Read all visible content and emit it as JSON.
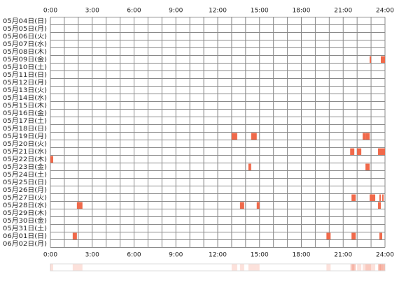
{
  "chart_data": {
    "type": "timeline",
    "xlim": [
      0,
      24
    ],
    "xticks": [
      {
        "value": 0,
        "label": "0:00"
      },
      {
        "value": 3,
        "label": "3:00"
      },
      {
        "value": 6,
        "label": "6:00"
      },
      {
        "value": 9,
        "label": "9:00"
      },
      {
        "value": 12,
        "label": "12:00"
      },
      {
        "value": 15,
        "label": "15:00"
      },
      {
        "value": 18,
        "label": "18:00"
      },
      {
        "value": 21,
        "label": "21:00"
      },
      {
        "value": 24,
        "label": "24:00"
      }
    ],
    "color": "#f0694a",
    "categories": [
      "05月04日(日)",
      "05月05日(月)",
      "05月06日(火)",
      "05月07日(水)",
      "05月08日(木)",
      "05月09日(金)",
      "05月10日(土)",
      "05月11日(日)",
      "05月12日(月)",
      "05月13日(火)",
      "05月14日(水)",
      "05月15日(木)",
      "05月16日(金)",
      "05月17日(土)",
      "05月18日(日)",
      "05月19日(月)",
      "05月20日(火)",
      "05月21日(水)",
      "05月22日(木)",
      "05月23日(金)",
      "05月24日(土)",
      "05月25日(日)",
      "05月26日(月)",
      "05月27日(火)",
      "05月28日(水)",
      "05月29日(木)",
      "05月30日(金)",
      "05月31日(土)",
      "06月01日(日)",
      "06月02日(月)"
    ],
    "intervals": [
      [],
      [],
      [],
      [],
      [],
      [
        [
          22.9,
          23.0
        ],
        [
          23.7,
          24.0
        ]
      ],
      [],
      [],
      [],
      [],
      [],
      [],
      [],
      [],
      [],
      [
        [
          13.0,
          13.4
        ],
        [
          14.4,
          14.8
        ],
        [
          22.4,
          22.6
        ],
        [
          22.6,
          22.9
        ]
      ],
      [],
      [
        [
          21.5,
          21.8
        ],
        [
          22.0,
          22.3
        ],
        [
          23.5,
          24.0
        ]
      ],
      [
        [
          0.0,
          0.2
        ]
      ],
      [
        [
          14.2,
          14.4
        ],
        [
          22.6,
          22.9
        ]
      ],
      [],
      [],
      [],
      [
        [
          21.6,
          21.9
        ],
        [
          22.9,
          23.3
        ],
        [
          23.6,
          23.7
        ],
        [
          23.8,
          23.9
        ]
      ],
      [
        [
          1.9,
          2.3
        ],
        [
          13.6,
          13.9
        ],
        [
          14.8,
          15.0
        ],
        [
          23.5,
          23.7
        ]
      ],
      [],
      [],
      [],
      [
        [
          1.6,
          1.9
        ],
        [
          19.8,
          20.1
        ],
        [
          21.6,
          21.9
        ],
        [
          23.6,
          23.8
        ]
      ],
      []
    ]
  }
}
